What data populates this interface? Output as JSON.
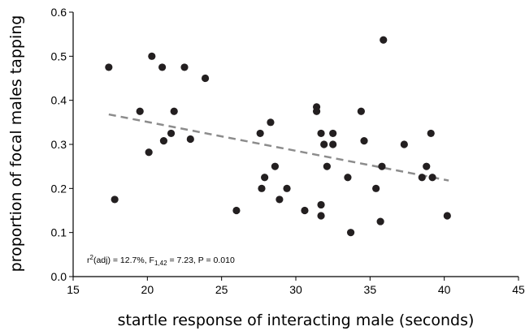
{
  "chart_data": {
    "type": "scatter",
    "xlabel": "startle response of interacting male (seconds)",
    "ylabel": "proportion of focal males tapping",
    "xlim": [
      15,
      45
    ],
    "ylim": [
      0,
      0.6
    ],
    "xticks": [
      "15",
      "20",
      "25",
      "30",
      "35",
      "40",
      "45"
    ],
    "yticks": [
      "0.0",
      "0.1",
      "0.2",
      "0.3",
      "0.4",
      "0.5",
      "0.6"
    ],
    "grid": false,
    "annotation": {
      "prefix": "r",
      "sup": "2",
      "mid": "(adj) = 12.7%, F",
      "sub": "1,42",
      "suffix": " = 7.23, P = 0.010"
    },
    "trend_line": {
      "style": "dashed",
      "color": "#8c8c8c",
      "x": [
        17.4,
        40.3
      ],
      "y": [
        0.368,
        0.218
      ]
    },
    "point_color": "#231f20",
    "points": [
      [
        17.4,
        0.475
      ],
      [
        17.8,
        0.175
      ],
      [
        19.5,
        0.375
      ],
      [
        20.1,
        0.282
      ],
      [
        20.3,
        0.5
      ],
      [
        21.0,
        0.475
      ],
      [
        21.1,
        0.308
      ],
      [
        21.6,
        0.325
      ],
      [
        21.8,
        0.375
      ],
      [
        22.5,
        0.475
      ],
      [
        22.9,
        0.312
      ],
      [
        23.9,
        0.45
      ],
      [
        26.0,
        0.15
      ],
      [
        27.6,
        0.325
      ],
      [
        27.7,
        0.2
      ],
      [
        27.9,
        0.225
      ],
      [
        28.3,
        0.35
      ],
      [
        28.6,
        0.25
      ],
      [
        28.9,
        0.175
      ],
      [
        29.4,
        0.2
      ],
      [
        30.6,
        0.15
      ],
      [
        31.4,
        0.385
      ],
      [
        31.4,
        0.375
      ],
      [
        31.7,
        0.325
      ],
      [
        31.7,
        0.163
      ],
      [
        31.7,
        0.138
      ],
      [
        31.9,
        0.3
      ],
      [
        32.1,
        0.25
      ],
      [
        32.5,
        0.325
      ],
      [
        32.5,
        0.3
      ],
      [
        33.5,
        0.225
      ],
      [
        33.7,
        0.1
      ],
      [
        34.4,
        0.375
      ],
      [
        34.6,
        0.308
      ],
      [
        35.4,
        0.2
      ],
      [
        35.7,
        0.125
      ],
      [
        35.8,
        0.25
      ],
      [
        35.9,
        0.537
      ],
      [
        37.3,
        0.3
      ],
      [
        38.5,
        0.225
      ],
      [
        38.8,
        0.25
      ],
      [
        39.1,
        0.325
      ],
      [
        39.2,
        0.225
      ],
      [
        40.2,
        0.138
      ]
    ]
  }
}
